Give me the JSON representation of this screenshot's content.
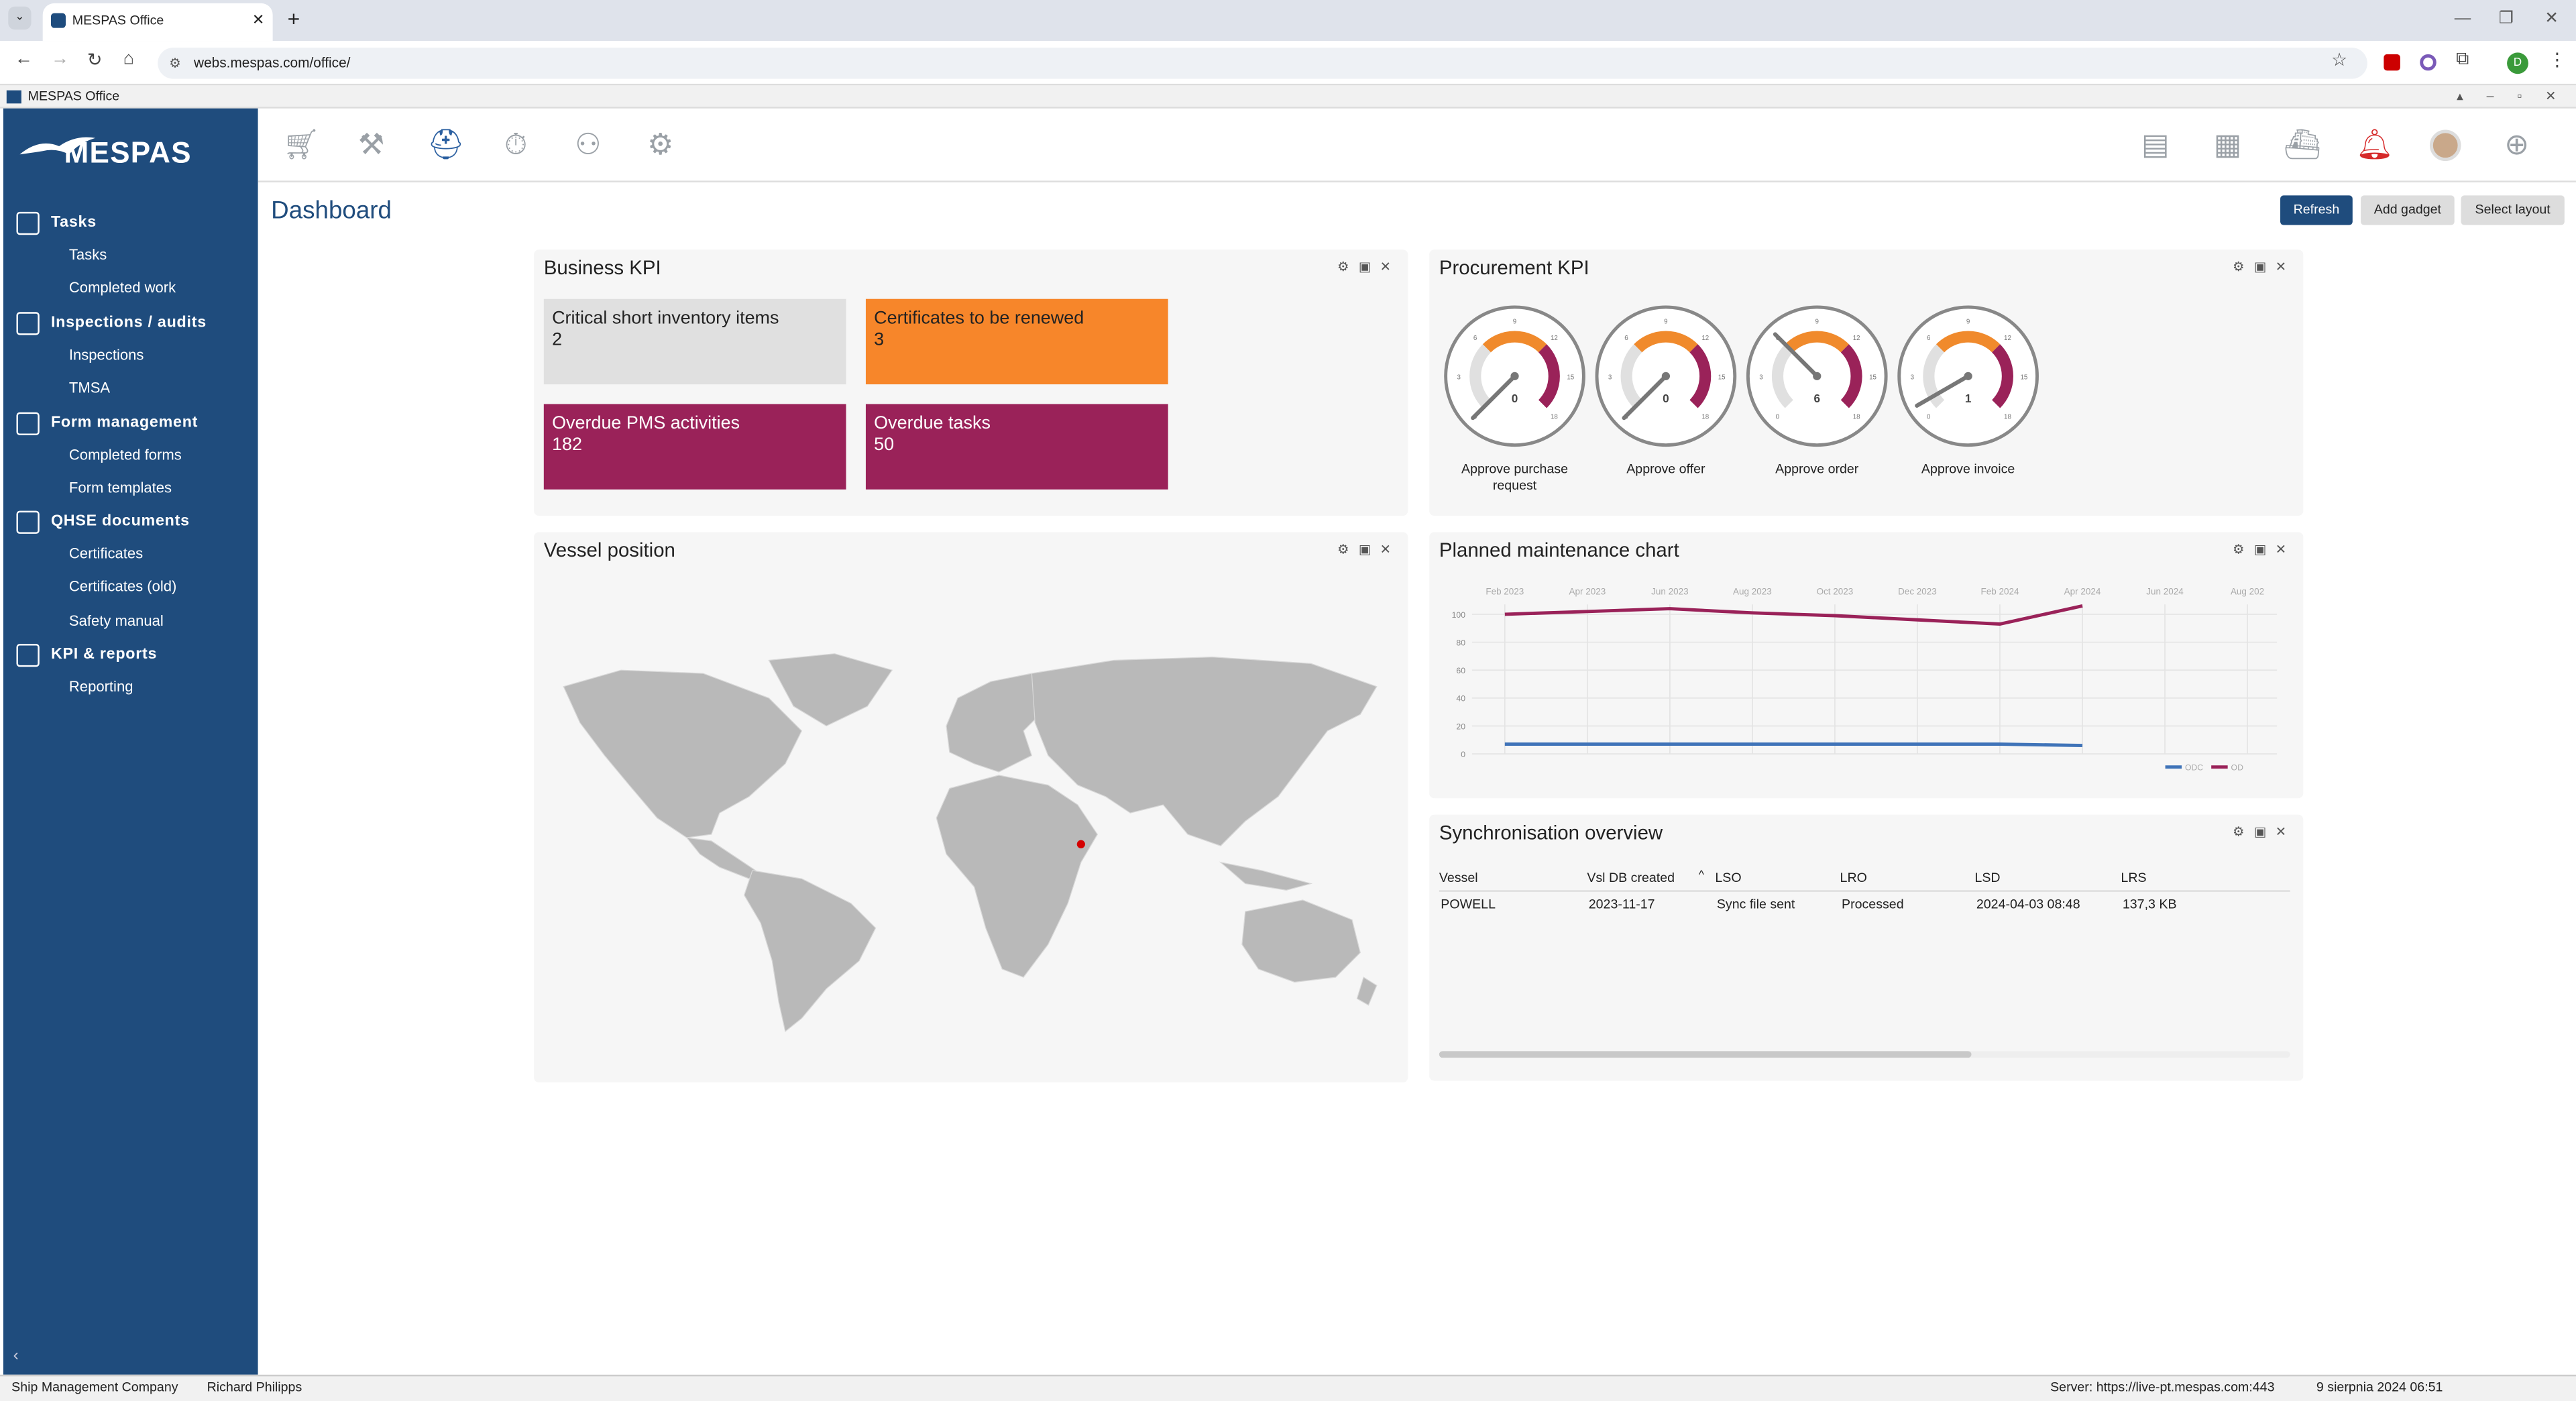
{
  "browser": {
    "tab_title": "MESPAS Office",
    "url": "webs.mespas.com/office/",
    "profile_initial": "D"
  },
  "app": {
    "window_title": "MESPAS Office",
    "logo_text": "MESPAS"
  },
  "sidebar": {
    "sections": [
      {
        "label": "Tasks",
        "icon": "clipboard-icon",
        "items": [
          "Tasks",
          "Completed work"
        ]
      },
      {
        "label": "Inspections / audits",
        "icon": "inspector-icon",
        "items": [
          "Inspections",
          "TMSA"
        ]
      },
      {
        "label": "Form management",
        "icon": "form-icon",
        "items": [
          "Completed forms",
          "Form templates"
        ]
      },
      {
        "label": "QHSE documents",
        "icon": "documents-icon",
        "items": [
          "Certificates",
          "Certificates (old)",
          "Safety manual"
        ]
      },
      {
        "label": "KPI & reports",
        "icon": "report-icon",
        "items": [
          "Reporting"
        ]
      }
    ]
  },
  "topbar": {
    "left_icons": [
      "cart-icon",
      "tools-icon",
      "hardhat-icon",
      "stopwatch-icon",
      "people-icon",
      "gear-icon"
    ],
    "right_icons": [
      "id-card-icon",
      "grid-icon",
      "ship-icon",
      "alarm-icon",
      "avatar",
      "plus-circle-icon"
    ]
  },
  "dashboard": {
    "title": "Dashboard",
    "buttons": {
      "refresh": "Refresh",
      "add_gadget": "Add gadget",
      "select_layout": "Select layout"
    }
  },
  "business_kpi": {
    "title": "Business KPI",
    "tiles": [
      {
        "label": "Critical short inventory items",
        "value": "2",
        "color": "#e0e0e0"
      },
      {
        "label": "Certificates to be renewed",
        "value": "3",
        "color": "#f7862a"
      },
      {
        "label": "Overdue PMS activities",
        "value": "182",
        "color": "#9a2259"
      },
      {
        "label": "Overdue tasks",
        "value": "50",
        "color": "#9a2259"
      }
    ]
  },
  "procurement_kpi": {
    "title": "Procurement KPI",
    "gauges": [
      {
        "label": "Approve purchase request",
        "value": "0",
        "needle": 0
      },
      {
        "label": "Approve offer",
        "value": "0",
        "needle": 0
      },
      {
        "label": "Approve order",
        "value": "6",
        "needle": 6
      },
      {
        "label": "Approve invoice",
        "value": "1",
        "needle": 1
      }
    ],
    "scale_ticks": [
      "0",
      "3",
      "6",
      "9",
      "12",
      "15",
      "18"
    ]
  },
  "vessel_position": {
    "title": "Vessel position"
  },
  "maintenance_chart": {
    "title": "Planned maintenance chart"
  },
  "chart_data": {
    "type": "line",
    "x": [
      "Feb 2023",
      "Apr 2023",
      "Jun 2023",
      "Aug 2023",
      "Oct 2023",
      "Dec 2023",
      "Feb 2024",
      "Apr 2024",
      "Jun 2024",
      "Aug 202"
    ],
    "ylim": [
      0,
      100
    ],
    "yticks": [
      "0",
      "20",
      "40",
      "60",
      "80",
      "100"
    ],
    "series": [
      {
        "name": "OD",
        "color": "#9a2259",
        "values": [
          100,
          102,
          104,
          101,
          99,
          96,
          93,
          106,
          null,
          null
        ]
      },
      {
        "name": "ODC",
        "color": "#3f73b8",
        "values": [
          7,
          7,
          7,
          7,
          7,
          7,
          7,
          6,
          null,
          null
        ]
      }
    ],
    "legend": "bottom-right"
  },
  "sync_overview": {
    "title": "Synchronisation overview",
    "columns": [
      "Vessel",
      "Vsl DB created",
      "LSO",
      "LRO",
      "LSD",
      "LRS"
    ],
    "rows": [
      [
        "POWELL",
        "2023-11-17",
        "Sync file sent",
        "Processed",
        "2024-04-03 08:48",
        "137,3 KB"
      ]
    ]
  },
  "statusbar": {
    "company": "Ship Management Company",
    "user": "Richard Philipps",
    "server": "Server: https://live-pt.mespas.com:443",
    "datetime": "9 sierpnia 2024 06:51"
  }
}
